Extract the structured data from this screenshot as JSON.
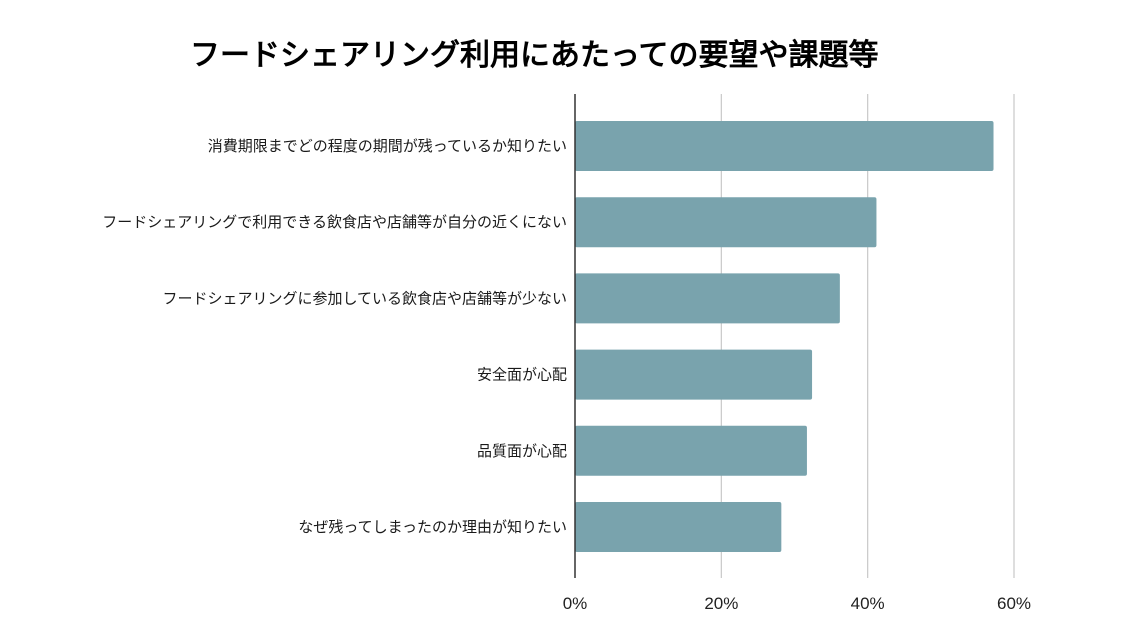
{
  "chart_data": {
    "type": "bar",
    "orientation": "horizontal",
    "title": "フードシェアリング利用にあたっての要望や課題等",
    "categories": [
      "消費期限までどの程度の期間が残っているか知りたい",
      "フードシェアリングで利用できる飲食店や店舗等が自分の近くにない",
      "フードシェアリングに参加している飲食店や店舗等が少ない",
      "安全面が心配",
      "品質面が心配",
      "なぜ残ってしまったのか理由が知りたい"
    ],
    "values": [
      57.2,
      41.2,
      36.2,
      32.4,
      31.7,
      28.2
    ],
    "unit": "%",
    "xlim": [
      0,
      60
    ],
    "ticks": [
      0,
      20,
      40,
      60
    ],
    "tick_labels": [
      "0%",
      "20%",
      "40%",
      "60%"
    ],
    "grid": true,
    "legend": "none",
    "bar_color": "#79a3ad",
    "grid_color": "#c8c8c8",
    "axis_color": "#333333"
  }
}
